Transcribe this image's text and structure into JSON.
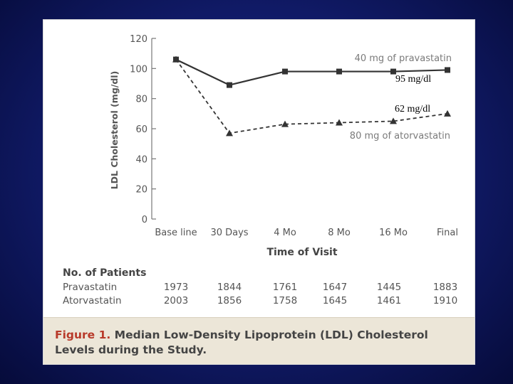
{
  "chart_data": {
    "type": "line",
    "categories": [
      "Base line",
      "30 Days",
      "4 Mo",
      "8 Mo",
      "16 Mo",
      "Final"
    ],
    "series": [
      {
        "name": "40 mg of pravastatin",
        "values": [
          106,
          89,
          98,
          98,
          98,
          99
        ],
        "line_style": "solid",
        "marker": "square"
      },
      {
        "name": "80 mg of atorvastatin",
        "values": [
          106,
          57,
          63,
          64,
          65,
          70
        ],
        "line_style": "dashed",
        "marker": "triangle"
      }
    ],
    "ylabel": "LDL Cholesterol (mg/dl)",
    "xlabel": "Time of Visit",
    "ylim": [
      0,
      120
    ],
    "yticks": [
      "0",
      "20",
      "40",
      "60",
      "80",
      "100",
      "120"
    ],
    "annotations": [
      "95 mg/dl",
      "62 mg/dl"
    ],
    "colors": {
      "line": "#333333",
      "axis": "#777777"
    }
  },
  "patients_table": {
    "heading": "No. of Patients",
    "rows": [
      {
        "label": "Pravastatin",
        "values": [
          "1973",
          "1844",
          "1761",
          "1647",
          "1445",
          "1883"
        ]
      },
      {
        "label": "Atorvastatin",
        "values": [
          "2003",
          "1856",
          "1758",
          "1645",
          "1461",
          "1910"
        ]
      }
    ]
  },
  "caption": {
    "prefix": "Figure 1.",
    "text": "Median Low-Density Lipoprotein (LDL) Cholesterol Levels during the Study."
  }
}
